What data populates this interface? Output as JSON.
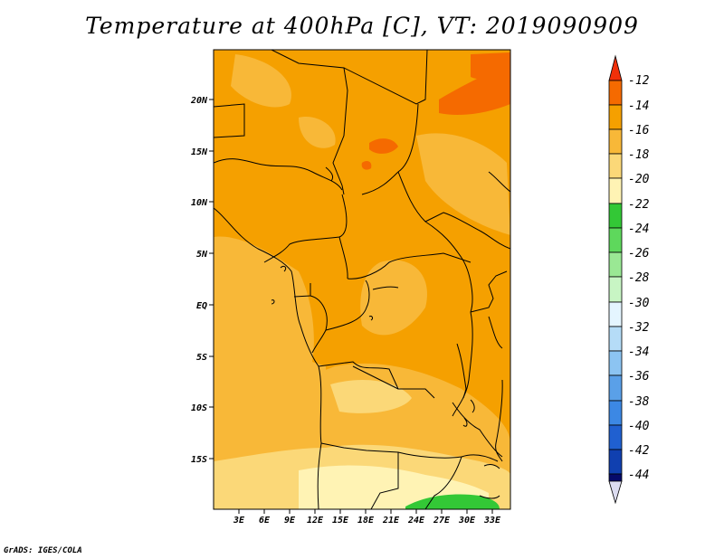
{
  "title": "Temperature at 400hPa [C], VT: 2019090909",
  "credit": "GrADS: IGES/COLA",
  "map": {
    "lat_ticks": [
      "20N",
      "15N",
      "10N",
      "5N",
      "EQ",
      "5S",
      "10S",
      "15S"
    ],
    "lon_ticks": [
      "3E",
      "6E",
      "9E",
      "12E",
      "15E",
      "18E",
      "21E",
      "24E",
      "27E",
      "30E",
      "33E"
    ]
  },
  "colorbar": {
    "labels": [
      "-12",
      "-14",
      "-16",
      "-18",
      "-20",
      "-22",
      "-24",
      "-26",
      "-28",
      "-30",
      "-32",
      "-34",
      "-36",
      "-38",
      "-40",
      "-42",
      "-44"
    ],
    "colors": {
      "warmest": "#f0300a",
      "c_m12_m14": "#f56a00",
      "c_m14_m16": "#f5a000",
      "c_m16_m18": "#f8b838",
      "c_m18_m20": "#fbd878",
      "c_m20_m22": "#fff3b4",
      "c_m22_m24": "#33c836",
      "c_m24_m26": "#5ed85c",
      "c_m26_m28": "#9ae894",
      "c_m28_m30": "#c8f5c4",
      "c_m30_m32": "#e4f5ff",
      "c_m32_m34": "#b5dcf7",
      "c_m34_m36": "#8cc4f2",
      "c_m36_m38": "#5aa0e8",
      "c_m38_m40": "#3c88e4",
      "c_m40_m42": "#2060d0",
      "c_m42_m44": "#1040b0",
      "c_m44_lower": "#060a6a",
      "coldest": "#dcdcf0"
    }
  }
}
